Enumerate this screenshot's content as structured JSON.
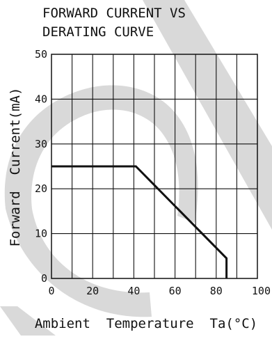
{
  "chart_data": {
    "type": "line",
    "title_lines": [
      "FORWARD CURRENT VS",
      "DERATING CURVE"
    ],
    "xlabel": "Ambient  Temperature  Ta(°C)",
    "ylabel": "Forward  Current(mA)",
    "x_ticks": [
      "0",
      "20",
      "40",
      "60",
      "80",
      "100"
    ],
    "y_ticks": [
      "0",
      "10",
      "20",
      "30",
      "40",
      "50"
    ],
    "xlim": [
      0,
      100
    ],
    "ylim": [
      0,
      50
    ],
    "grid": true,
    "x_grid_step": 10,
    "y_grid_step": 10,
    "series": [
      {
        "points": [
          {
            "x": 0,
            "y": 25
          },
          {
            "x": 41,
            "y": 25
          },
          {
            "x": 85,
            "y": 4.5
          },
          {
            "x": 85,
            "y": 0
          }
        ]
      }
    ],
    "colors": {
      "line": "#111111",
      "grid": "#111111",
      "watermark": "#d9d9d9"
    },
    "watermark": "decorative-arc-and-slash"
  }
}
